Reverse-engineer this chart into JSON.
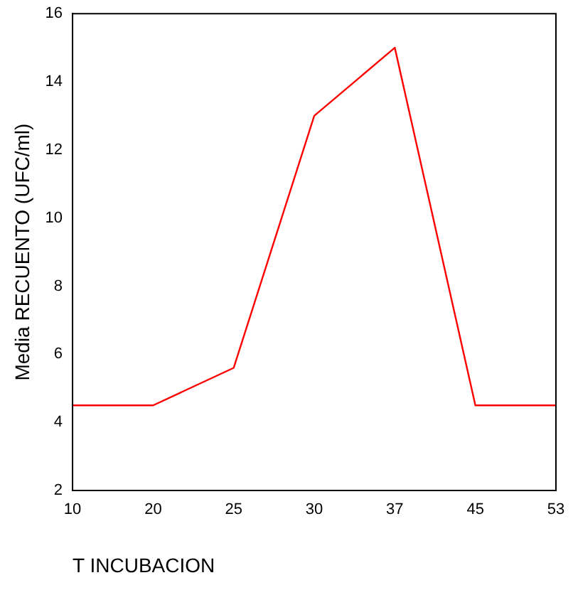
{
  "chart_data": {
    "type": "line",
    "xlabel": "T INCUBACION",
    "ylabel": "Media RECUENTO (UFC/ml)",
    "categories": [
      "10",
      "20",
      "25",
      "30",
      "37",
      "45",
      "53"
    ],
    "series": [
      {
        "color": "#ff0000",
        "values": [
          4.5,
          4.5,
          5.6,
          13,
          15,
          4.5,
          4.5
        ]
      }
    ],
    "ylim": [
      2,
      16
    ],
    "yticks": [
      2,
      4,
      6,
      8,
      10,
      12,
      14,
      16
    ],
    "grid": false,
    "legend": false,
    "marker": "none",
    "line_style": "solid"
  }
}
